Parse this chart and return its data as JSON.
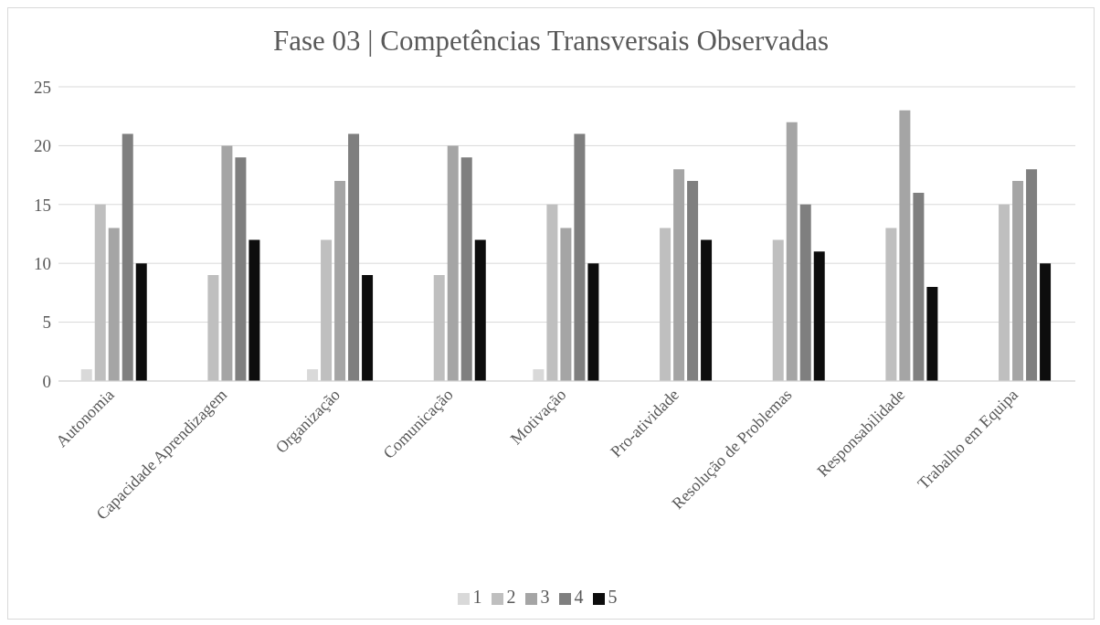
{
  "chart_data": {
    "type": "bar",
    "title": "Fase 03 | Competências Transversais Observadas",
    "categories": [
      "Autonomia",
      "Capacidade Aprendizagem",
      "Organização",
      "Comunicação",
      "Motivação",
      "Pro-atividade",
      "Resolução de Problemas",
      "Responsabilidade",
      "Trabalho em Equipa"
    ],
    "series": [
      {
        "name": "1",
        "color": "#d9d9d9",
        "values": [
          1,
          0,
          1,
          0,
          1,
          0,
          0,
          0,
          0
        ]
      },
      {
        "name": "2",
        "color": "#bfbfbf",
        "values": [
          15,
          9,
          12,
          9,
          15,
          13,
          12,
          13,
          15
        ]
      },
      {
        "name": "3",
        "color": "#a5a5a5",
        "values": [
          13,
          20,
          17,
          20,
          13,
          18,
          22,
          23,
          17
        ]
      },
      {
        "name": "4",
        "color": "#7f7f7f",
        "values": [
          21,
          19,
          21,
          19,
          21,
          17,
          15,
          16,
          18
        ]
      },
      {
        "name": "5",
        "color": "#0d0d0d",
        "values": [
          10,
          12,
          9,
          12,
          10,
          12,
          11,
          8,
          10
        ]
      }
    ],
    "ylim": [
      0,
      25
    ],
    "yticks": [
      0,
      5,
      10,
      15,
      20,
      25
    ],
    "grid": "y",
    "legend": "bottom"
  }
}
